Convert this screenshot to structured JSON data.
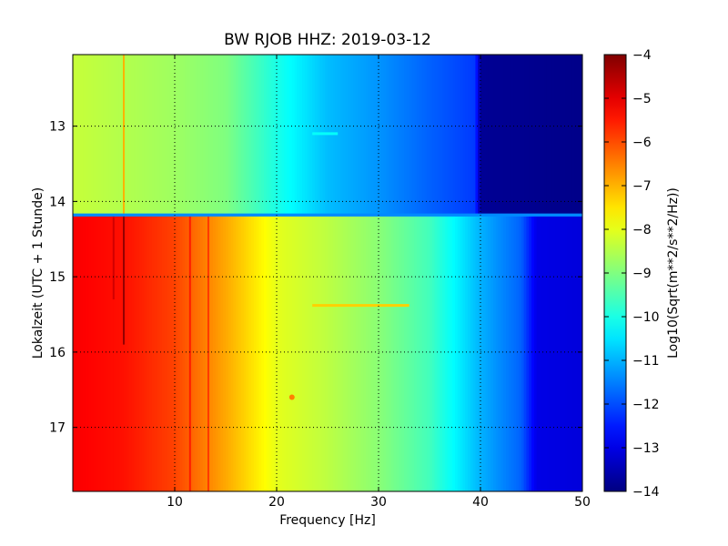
{
  "chart_data": {
    "type": "heatmap",
    "title": "BW RJOB HHZ: 2019-03-12",
    "xlabel": "Frequency [Hz]",
    "ylabel": "Lokalzeit (UTC + 1 Stunde)",
    "xlim": [
      0,
      50
    ],
    "ylim": [
      12.05,
      17.85
    ],
    "y_inverted": true,
    "x_ticks": [
      10,
      20,
      30,
      40,
      50
    ],
    "x_tick_labels": [
      "10",
      "20",
      "30",
      "40",
      "50"
    ],
    "y_ticks": [
      13,
      14,
      15,
      16,
      17
    ],
    "y_tick_labels": [
      "13",
      "14",
      "15",
      "16",
      "17"
    ],
    "grid": true,
    "colormap": "jet",
    "colorbar": {
      "label": "Log10(Sqrt(m**2/s**2/Hz))",
      "range": [
        -14,
        -4
      ],
      "ticks": [
        -4,
        -5,
        -6,
        -7,
        -8,
        -9,
        -10,
        -11,
        -12,
        -13,
        -14
      ],
      "tick_labels": [
        "−4",
        "−5",
        "−6",
        "−7",
        "−8",
        "−9",
        "−10",
        "−11",
        "−12",
        "−13",
        "−14"
      ]
    },
    "segments": [
      {
        "time_range": [
          12.05,
          14.18
        ],
        "frequency_profile": [
          {
            "f": 0,
            "v": -8.3
          },
          {
            "f": 5,
            "v": -8.5
          },
          {
            "f": 10,
            "v": -8.7
          },
          {
            "f": 15,
            "v": -9.0
          },
          {
            "f": 20,
            "v": -10.0
          },
          {
            "f": 25,
            "v": -10.9
          },
          {
            "f": 30,
            "v": -11.3
          },
          {
            "f": 35,
            "v": -11.8
          },
          {
            "f": 39.5,
            "v": -12.2
          },
          {
            "f": 40,
            "v": -13.8
          },
          {
            "f": 50,
            "v": -13.9
          }
        ]
      },
      {
        "time_range": [
          14.18,
          17.85
        ],
        "frequency_profile": [
          {
            "f": 0,
            "v": -5.2
          },
          {
            "f": 5,
            "v": -5.4
          },
          {
            "f": 10,
            "v": -5.9
          },
          {
            "f": 15,
            "v": -6.9
          },
          {
            "f": 20,
            "v": -8.0
          },
          {
            "f": 25,
            "v": -8.4
          },
          {
            "f": 30,
            "v": -8.9
          },
          {
            "f": 35,
            "v": -9.6
          },
          {
            "f": 40,
            "v": -11.0
          },
          {
            "f": 44,
            "v": -11.8
          },
          {
            "f": 45.5,
            "v": -13.0
          },
          {
            "f": 50,
            "v": -13.1
          }
        ]
      }
    ],
    "features": [
      {
        "type": "line",
        "f": 5,
        "t_range": [
          12.05,
          14.18
        ],
        "value": -7.0
      },
      {
        "type": "line",
        "f": 5,
        "t_range": [
          14.18,
          15.9
        ],
        "value": -4.2
      },
      {
        "type": "line",
        "f": 4,
        "t_range": [
          14.18,
          15.3
        ],
        "value": -4.8
      },
      {
        "type": "line",
        "f": 11.5,
        "t_range": [
          14.18,
          17.85
        ],
        "value": -5.5
      },
      {
        "type": "line",
        "f": 13.3,
        "t_range": [
          14.18,
          17.85
        ],
        "value": -5.8
      },
      {
        "type": "band",
        "f_range": [
          0,
          50
        ],
        "t_range": [
          14.16,
          14.2
        ],
        "value": -11.4
      },
      {
        "type": "line_h",
        "f_range": [
          23.5,
          26
        ],
        "t": 13.1,
        "value": -10.2
      },
      {
        "type": "line_h",
        "f_range": [
          23.5,
          33
        ],
        "t": 15.38,
        "value": -7.3
      },
      {
        "type": "spot",
        "f": 21.5,
        "t": 16.6,
        "value": -6.5
      }
    ]
  }
}
